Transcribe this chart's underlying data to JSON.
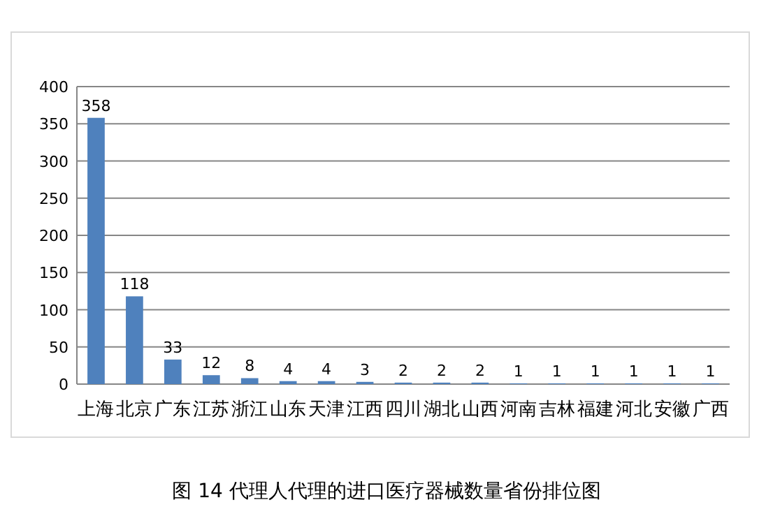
{
  "chart_data": {
    "type": "bar",
    "title": "图 14  代理人代理的进口医疗器械数量省份排位图",
    "categories": [
      "上海",
      "北京",
      "广东",
      "江苏",
      "浙江",
      "山东",
      "天津",
      "江西",
      "四川",
      "湖北",
      "山西",
      "河南",
      "吉林",
      "福建",
      "河北",
      "安徽",
      "广西"
    ],
    "values": [
      358,
      118,
      33,
      12,
      8,
      4,
      4,
      3,
      2,
      2,
      2,
      1,
      1,
      1,
      1,
      1,
      1
    ],
    "color": "#4f81bd",
    "ylim": [
      0,
      400
    ],
    "yticks": [
      0,
      50,
      100,
      150,
      200,
      250,
      300,
      350,
      400
    ],
    "grid": "y",
    "data_labels": true
  }
}
